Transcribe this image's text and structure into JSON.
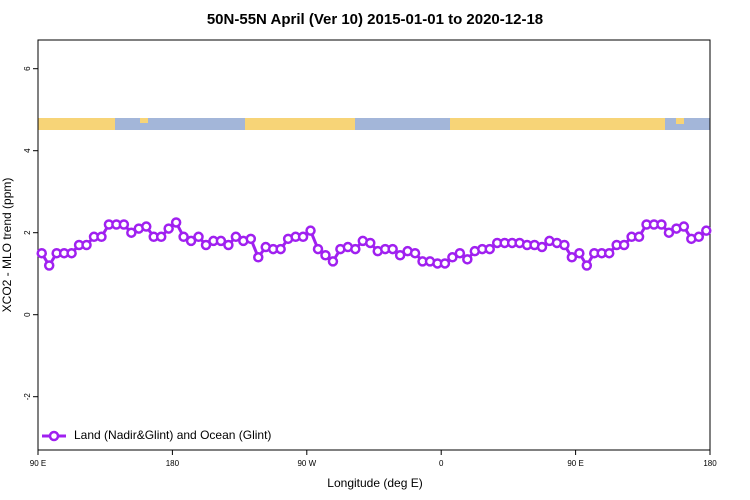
{
  "chart_data": {
    "type": "line",
    "title": "50N-55N April (Ver 10)   2015-01-01 to 2020-12-18",
    "x_label": "Longitude (deg E)",
    "y_label": "XCO2 - MLO trend (ppm)",
    "xlim": [
      90,
      540
    ],
    "xticks": [
      {
        "value": 90,
        "label": "90 E"
      },
      {
        "value": 180,
        "label": "180"
      },
      {
        "value": 270,
        "label": "90 W"
      },
      {
        "value": 360,
        "label": "0"
      },
      {
        "value": 450,
        "label": "90 E"
      },
      {
        "value": 540,
        "label": "180"
      }
    ],
    "ylim": [
      -3.3,
      6.7
    ],
    "yticks": [
      -2,
      0,
      2,
      4,
      6
    ],
    "legend": "bottom-left",
    "x": [
      92.5,
      97.5,
      102.5,
      107.5,
      112.5,
      117.5,
      122.5,
      127.5,
      132.5,
      137.5,
      142.5,
      147.5,
      152.5,
      157.5,
      162.5,
      167.5,
      172.5,
      177.5,
      182.5,
      187.5,
      192.5,
      197.5,
      202.5,
      207.5,
      212.5,
      217.5,
      222.5,
      227.5,
      232.5,
      237.5,
      242.5,
      247.5,
      252.5,
      257.5,
      262.5,
      267.5,
      272.5,
      277.5,
      282.5,
      287.5,
      292.5,
      297.5,
      302.5,
      307.5,
      312.5,
      317.5,
      322.5,
      327.5,
      332.5,
      337.5,
      342.5,
      347.5,
      352.5,
      357.5,
      362.5,
      367.5,
      372.5,
      377.5,
      382.5,
      387.5,
      392.5,
      397.5,
      402.5,
      407.5,
      412.5,
      417.5,
      422.5,
      427.5,
      432.5,
      437.5,
      442.5,
      447.5,
      452.5,
      457.5,
      462.5,
      467.5,
      472.5,
      477.5,
      482.5,
      487.5,
      492.5,
      497.5,
      502.5,
      507.5,
      512.5,
      517.5,
      522.5,
      527.5,
      532.5,
      537.5
    ],
    "series": [
      {
        "name": "Land (Nadir&Glint) and Ocean (Glint)",
        "color": "#a020f0",
        "values": [
          1.5,
          1.2,
          1.5,
          1.5,
          1.5,
          1.7,
          1.7,
          1.9,
          1.9,
          2.2,
          2.2,
          2.2,
          2.0,
          2.1,
          2.15,
          1.9,
          1.9,
          2.1,
          2.25,
          1.9,
          1.8,
          1.9,
          1.7,
          1.8,
          1.8,
          1.7,
          1.9,
          1.8,
          1.85,
          1.4,
          1.65,
          1.6,
          1.6,
          1.85,
          1.9,
          1.9,
          2.05,
          1.6,
          1.45,
          1.3,
          1.6,
          1.65,
          1.6,
          1.8,
          1.75,
          1.55,
          1.6,
          1.6,
          1.45,
          1.55,
          1.5,
          1.3,
          1.3,
          1.25,
          1.25,
          1.4,
          1.5,
          1.35,
          1.55,
          1.6,
          1.6,
          1.75,
          1.75,
          1.75,
          1.75,
          1.7,
          1.7,
          1.65,
          1.8,
          1.75,
          1.7,
          1.4,
          1.5,
          1.2,
          1.5,
          1.5,
          1.5,
          1.7,
          1.7,
          1.9,
          1.9,
          2.2,
          2.2,
          2.2,
          2.0,
          2.1,
          2.15,
          1.85,
          1.9,
          2.05
        ]
      }
    ]
  }
}
